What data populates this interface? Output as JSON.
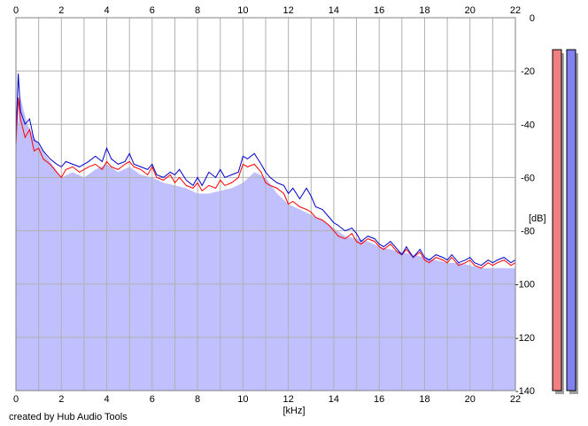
{
  "credit": "created by Hub Audio Tools",
  "colors": {
    "left_channel": "#ff0000",
    "right_channel": "#0000cc",
    "fill": "#c0c0ff",
    "grid": "#b0b0b0",
    "meter_left": "#f08080",
    "meter_right": "#8080f0"
  },
  "chart_data": {
    "type": "line",
    "title": "",
    "xlabel": "[kHz]",
    "ylabel": "[dB]",
    "xlim": [
      0,
      22
    ],
    "ylim": [
      -140,
      0
    ],
    "x_ticks": [
      "0",
      "2",
      "4",
      "6",
      "8",
      "10",
      "12",
      "14",
      "16",
      "18",
      "20",
      "22"
    ],
    "y_ticks": [
      "0",
      "-20",
      "-40",
      "-60",
      "-80",
      "-100",
      "-120",
      "-140"
    ],
    "grid": true,
    "legend": "none",
    "series": [
      {
        "color": "#ff0000",
        "x": [
          0,
          0.1,
          0.2,
          0.4,
          0.6,
          0.8,
          1,
          1.2,
          1.5,
          1.8,
          2,
          2.2,
          2.5,
          2.8,
          3,
          3.2,
          3.5,
          3.8,
          4,
          4.2,
          4.5,
          4.8,
          5,
          5.2,
          5.5,
          5.8,
          6,
          6.2,
          6.5,
          6.8,
          7,
          7.2,
          7.5,
          7.8,
          8,
          8.2,
          8.5,
          8.8,
          9,
          9.2,
          9.5,
          9.8,
          10,
          10.2,
          10.5,
          10.8,
          11,
          11.2,
          11.5,
          11.8,
          12,
          12.2,
          12.5,
          12.8,
          13,
          13.2,
          13.5,
          13.8,
          14,
          14.2,
          14.5,
          14.8,
          15,
          15.2,
          15.5,
          15.8,
          16,
          16.2,
          16.5,
          16.8,
          17,
          17.2,
          17.5,
          17.8,
          18,
          18.2,
          18.5,
          18.8,
          19,
          19.2,
          19.5,
          19.8,
          20,
          20.2,
          20.5,
          20.8,
          21,
          21.2,
          21.5,
          21.8,
          22
        ],
        "y": [
          -48,
          -30,
          -38,
          -45,
          -42,
          -50,
          -49,
          -53,
          -55,
          -58,
          -60,
          -57,
          -56,
          -58,
          -57,
          -56,
          -55,
          -57,
          -54,
          -56,
          -57,
          -55,
          -54,
          -56,
          -57,
          -59,
          -56,
          -60,
          -61,
          -59,
          -62,
          -60,
          -63,
          -64,
          -62,
          -65,
          -63,
          -64,
          -61,
          -63,
          -62,
          -60,
          -55,
          -56,
          -55,
          -58,
          -62,
          -63,
          -64,
          -66,
          -70,
          -69,
          -71,
          -72,
          -73,
          -75,
          -76,
          -78,
          -80,
          -82,
          -83,
          -81,
          -84,
          -85,
          -83,
          -84,
          -86,
          -87,
          -85,
          -88,
          -89,
          -87,
          -90,
          -88,
          -91,
          -92,
          -90,
          -91,
          -92,
          -90,
          -93,
          -92,
          -91,
          -93,
          -94,
          -92,
          -93,
          -92,
          -91,
          -93,
          -92
        ]
      },
      {
        "color": "#0000cc",
        "x": [
          0,
          0.1,
          0.2,
          0.4,
          0.6,
          0.8,
          1,
          1.2,
          1.5,
          1.8,
          2,
          2.2,
          2.5,
          2.8,
          3,
          3.2,
          3.5,
          3.8,
          4,
          4.2,
          4.5,
          4.8,
          5,
          5.2,
          5.5,
          5.8,
          6,
          6.2,
          6.5,
          6.8,
          7,
          7.2,
          7.5,
          7.8,
          8,
          8.2,
          8.5,
          8.8,
          9,
          9.2,
          9.5,
          9.8,
          10,
          10.2,
          10.5,
          10.8,
          11,
          11.2,
          11.5,
          11.8,
          12,
          12.2,
          12.5,
          12.8,
          13,
          13.2,
          13.5,
          13.8,
          14,
          14.2,
          14.5,
          14.8,
          15,
          15.2,
          15.5,
          15.8,
          16,
          16.2,
          16.5,
          16.8,
          17,
          17.2,
          17.5,
          17.8,
          18,
          18.2,
          18.5,
          18.8,
          19,
          19.2,
          19.5,
          19.8,
          20,
          20.2,
          20.5,
          20.8,
          21,
          21.2,
          21.5,
          21.8,
          22
        ],
        "y": [
          -45,
          -21,
          -35,
          -40,
          -38,
          -46,
          -47,
          -50,
          -53,
          -55,
          -56,
          -54,
          -55,
          -56,
          -55,
          -54,
          -52,
          -54,
          -49,
          -53,
          -55,
          -54,
          -51,
          -55,
          -56,
          -57,
          -55,
          -59,
          -60,
          -58,
          -59,
          -57,
          -61,
          -63,
          -60,
          -63,
          -58,
          -60,
          -57,
          -60,
          -59,
          -58,
          -52,
          -53,
          -51,
          -55,
          -58,
          -60,
          -62,
          -63,
          -66,
          -64,
          -68,
          -64,
          -67,
          -71,
          -72,
          -75,
          -77,
          -78,
          -80,
          -79,
          -81,
          -84,
          -82,
          -83,
          -85,
          -86,
          -84,
          -87,
          -89,
          -86,
          -90,
          -87,
          -90,
          -91,
          -89,
          -90,
          -91,
          -89,
          -92,
          -91,
          -90,
          -92,
          -93,
          -91,
          -92,
          -91,
          -90,
          -92,
          -91
        ]
      }
    ],
    "fill_series": {
      "color": "#c0c0ff",
      "x": [
        0,
        0.2,
        0.5,
        1,
        1.5,
        2,
        2.5,
        3,
        3.5,
        4,
        4.5,
        5,
        5.5,
        6,
        6.5,
        7,
        7.5,
        8,
        8.5,
        9,
        9.5,
        10,
        10.5,
        11,
        11.5,
        12,
        12.5,
        13,
        13.5,
        14,
        14.5,
        15,
        15.5,
        16,
        16.5,
        17,
        17.5,
        18,
        18.5,
        19,
        19.5,
        20,
        20.5,
        21,
        21.5,
        22
      ],
      "y": [
        -48,
        -30,
        -40,
        -48,
        -54,
        -60,
        -58,
        -60,
        -57,
        -55,
        -58,
        -56,
        -59,
        -60,
        -62,
        -63,
        -64,
        -66,
        -66,
        -65,
        -64,
        -62,
        -58,
        -60,
        -66,
        -70,
        -72,
        -74,
        -76,
        -79,
        -82,
        -83,
        -84,
        -86,
        -87,
        -88,
        -89,
        -90,
        -91,
        -92,
        -92,
        -93,
        -94,
        -94,
        -94,
        -94
      ]
    }
  },
  "meters": [
    {
      "name": "left",
      "color": "#f08080",
      "level_db": -12
    },
    {
      "name": "right",
      "color": "#8080f0",
      "level_db": -12
    }
  ]
}
